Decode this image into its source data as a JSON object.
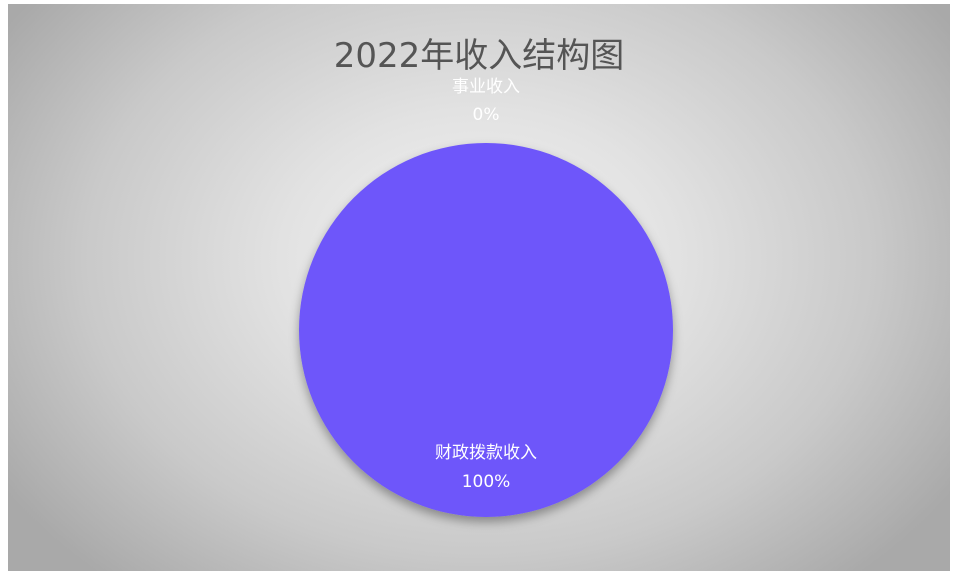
{
  "chart_data": {
    "type": "pie",
    "title": "2022年收入结构图",
    "slices": [
      {
        "label": "财政拨款收入",
        "value": 100,
        "percent_label": "100%",
        "color": "#6e56fa"
      },
      {
        "label": "事业收入",
        "value": 0,
        "percent_label": "0%",
        "color": "#6e56fa"
      }
    ],
    "grid": false,
    "legend": "none"
  }
}
